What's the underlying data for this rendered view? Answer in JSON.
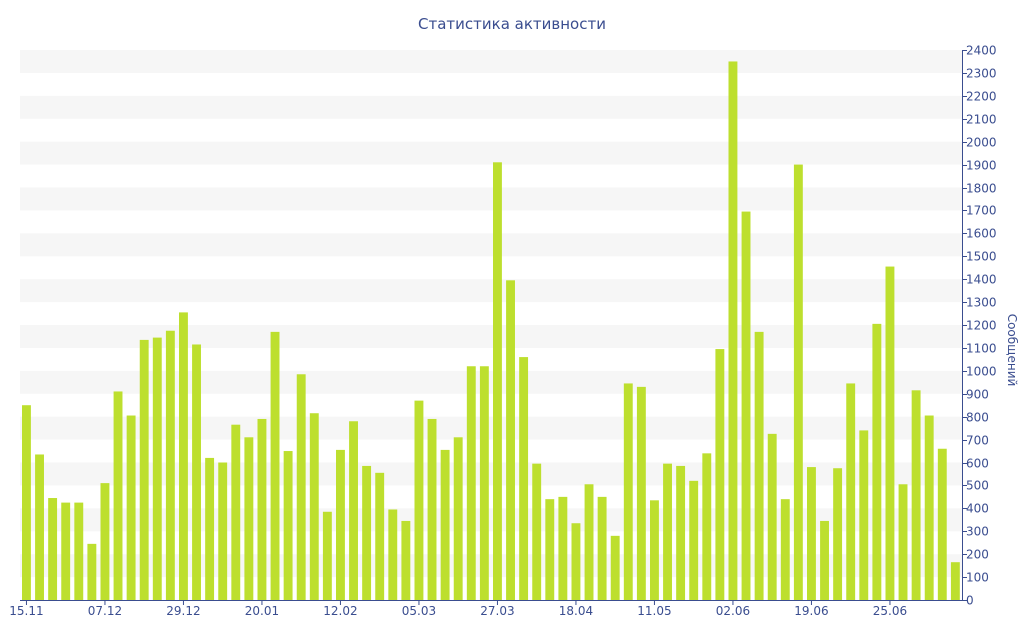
{
  "chart_data": {
    "type": "bar",
    "title": "Статистика активности",
    "ylabel": "Сообщений",
    "xlabel": "",
    "ylim": [
      0,
      2400
    ],
    "y_ticks": [
      0,
      100,
      200,
      300,
      400,
      500,
      600,
      700,
      800,
      900,
      1000,
      1100,
      1200,
      1300,
      1400,
      1500,
      1600,
      1700,
      1800,
      1900,
      2000,
      2100,
      2200,
      2300,
      2400
    ],
    "x_tick_labels": [
      {
        "label": "15.11",
        "index": 0
      },
      {
        "label": "07.12",
        "index": 6
      },
      {
        "label": "29.12",
        "index": 12
      },
      {
        "label": "20.01",
        "index": 18
      },
      {
        "label": "12.02",
        "index": 24
      },
      {
        "label": "05.03",
        "index": 30
      },
      {
        "label": "27.03",
        "index": 36
      },
      {
        "label": "18.04",
        "index": 42
      },
      {
        "label": "11.05",
        "index": 48
      },
      {
        "label": "02.06",
        "index": 54
      },
      {
        "label": "19.06",
        "index": 60
      },
      {
        "label": "25.06",
        "index": 66
      }
    ],
    "values": [
      850,
      635,
      445,
      425,
      425,
      245,
      510,
      910,
      805,
      1135,
      1145,
      1175,
      1255,
      1115,
      620,
      600,
      765,
      710,
      790,
      1170,
      650,
      985,
      815,
      385,
      655,
      780,
      585,
      555,
      395,
      345,
      870,
      790,
      655,
      710,
      1020,
      1020,
      1910,
      1395,
      1060,
      595,
      440,
      450,
      335,
      505,
      450,
      280,
      945,
      930,
      435,
      595,
      585,
      520,
      640,
      1095,
      2350,
      1695,
      1170,
      725,
      440,
      1900,
      580,
      345,
      575,
      945,
      740,
      1205,
      1455,
      505,
      915,
      805,
      660,
      165
    ],
    "bar_color": "#bddf2e",
    "grid": "alternating horizontal bands",
    "band_color": "#f6f6f6",
    "axis_color": "#3a4d8f"
  }
}
